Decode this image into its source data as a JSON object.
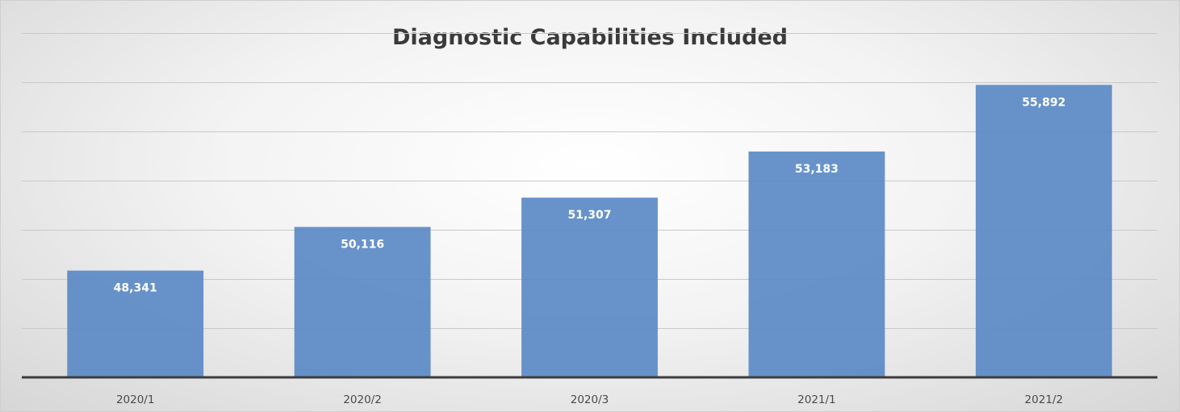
{
  "chart_data": {
    "type": "bar",
    "title": "Diagnostic Capabilities Included",
    "categories": [
      "2020/1",
      "2020/2",
      "2020/3",
      "2021/1",
      "2021/2"
    ],
    "values": [
      48341,
      50116,
      51307,
      53183,
      55892
    ],
    "value_labels": [
      "48,341",
      "50,116",
      "51,307",
      "53,183",
      "55,892"
    ],
    "ylim": [
      44000,
      58000
    ],
    "grid": true,
    "bar_color": "#5b8ac6",
    "legend": "none"
  }
}
